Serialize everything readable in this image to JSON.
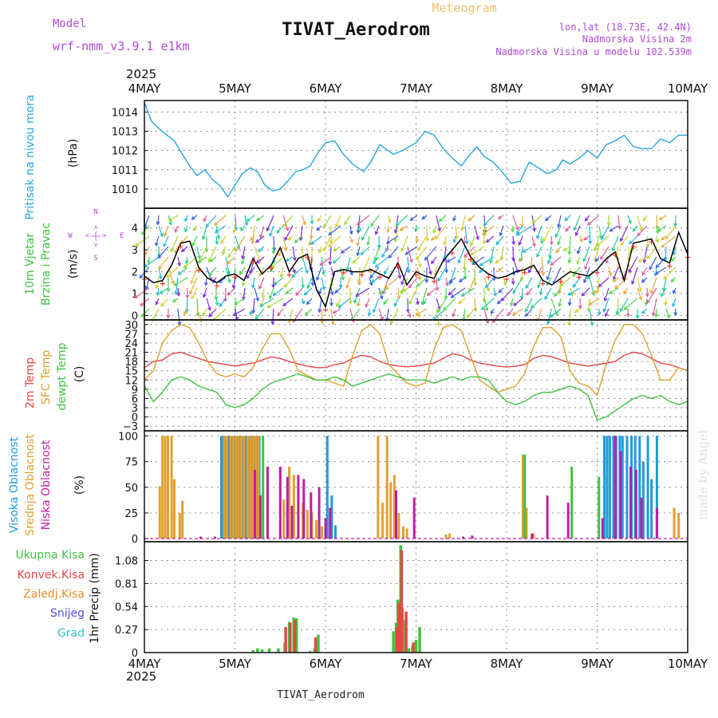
{
  "header": {
    "model_label": "Model",
    "model_name": "wrf-nmm_v3.9.1 e1km",
    "title": "TIVAT_Aerodrom",
    "subtitle": "Meteogram",
    "lonlat": "lon,lat (18.73E, 42.4N)",
    "elevation": "Nadmorska Visina 2m",
    "model_elevation": "Nadmorska Visina u modelu 102.539m",
    "footer": "TIVAT_Aerodrom",
    "watermark": "made by Angel"
  },
  "time_axis": {
    "year_top": "2025",
    "year_bottom": "2025",
    "ticks": [
      "4MAY",
      "5MAY",
      "6MAY",
      "7MAY",
      "8MAY",
      "9MAY",
      "10MAY"
    ],
    "range_days": [
      0,
      6
    ]
  },
  "chart_data": [
    {
      "type": "line",
      "panel": "pressure",
      "ylabel": "Pritisak na nivou mora",
      "unit": "(hPa)",
      "yticks": [
        1010,
        1011,
        1012,
        1013,
        1014
      ],
      "ylim": [
        1009.0,
        1014.6
      ],
      "grid": true,
      "series": [
        {
          "color": "#2aa5e0",
          "x": [
            0,
            0.08,
            0.17,
            0.25,
            0.33,
            0.42,
            0.5,
            0.58,
            0.67,
            0.75,
            0.83,
            0.92,
            1.0,
            1.08,
            1.17,
            1.25,
            1.33,
            1.42,
            1.5,
            1.58,
            1.67,
            1.75,
            1.83,
            1.92,
            2.0,
            2.1,
            2.2,
            2.3,
            2.42,
            2.5,
            2.6,
            2.75,
            2.85,
            3.0,
            3.1,
            3.2,
            3.3,
            3.4,
            3.5,
            3.58,
            3.67,
            3.75,
            3.85,
            3.95,
            4.05,
            4.15,
            4.25,
            4.35,
            4.45,
            4.55,
            4.62,
            4.7,
            4.8,
            4.9,
            5.0,
            5.1,
            5.2,
            5.3,
            5.4,
            5.5,
            5.6,
            5.7,
            5.8,
            5.9,
            6.0
          ],
          "values": [
            1014.5,
            1013.5,
            1013.1,
            1012.8,
            1012.5,
            1011.8,
            1011.2,
            1010.7,
            1011.0,
            1010.5,
            1010.2,
            1009.6,
            1010.2,
            1010.8,
            1011.1,
            1010.9,
            1010.2,
            1009.9,
            1010.0,
            1010.4,
            1010.9,
            1011.0,
            1011.2,
            1011.9,
            1012.4,
            1012.5,
            1011.8,
            1011.3,
            1010.9,
            1011.4,
            1012.3,
            1011.8,
            1012.0,
            1012.4,
            1013.0,
            1012.8,
            1012.1,
            1011.6,
            1011.2,
            1011.7,
            1012.2,
            1011.7,
            1011.4,
            1010.9,
            1010.3,
            1010.4,
            1011.4,
            1011.1,
            1010.8,
            1011.0,
            1011.5,
            1011.3,
            1011.6,
            1012.0,
            1011.6,
            1012.3,
            1012.5,
            1012.8,
            1012.2,
            1012.1,
            1012.1,
            1012.6,
            1012.4,
            1012.8,
            1012.8
          ]
        }
      ]
    },
    {
      "type": "line",
      "panel": "wind",
      "ylabel": "10m Vjetar",
      "ylabel2": "Brzina i Pravac",
      "unit": "(m/s)",
      "compass": {
        "n": "N",
        "w": "W",
        "e": "E",
        "s": "S",
        "arrow": "<-|->"
      },
      "yticks": [
        0,
        1,
        2,
        3,
        4
      ],
      "ylim": [
        -0.2,
        4.9
      ],
      "grid": true,
      "series": [
        {
          "color": "#000000",
          "x": [
            0,
            0.1,
            0.2,
            0.3,
            0.4,
            0.5,
            0.6,
            0.7,
            0.8,
            0.9,
            1.0,
            1.1,
            1.2,
            1.3,
            1.4,
            1.5,
            1.6,
            1.7,
            1.8,
            1.9,
            2.0,
            2.1,
            2.2,
            2.3,
            2.4,
            2.5,
            2.6,
            2.7,
            2.8,
            2.9,
            3.0,
            3.1,
            3.2,
            3.3,
            3.4,
            3.5,
            3.6,
            3.7,
            3.8,
            3.9,
            4.0,
            4.1,
            4.2,
            4.3,
            4.4,
            4.5,
            4.6,
            4.7,
            4.8,
            4.9,
            5.0,
            5.1,
            5.2,
            5.3,
            5.4,
            5.5,
            5.6,
            5.7,
            5.8,
            5.9,
            6.0
          ],
          "values": [
            1.8,
            1.5,
            1.6,
            2.3,
            3.3,
            3.4,
            2.2,
            1.7,
            1.5,
            1.8,
            1.9,
            1.6,
            2.6,
            1.9,
            2.3,
            3.1,
            2.0,
            2.6,
            2.8,
            1.2,
            0.4,
            2.0,
            2.1,
            2.0,
            2.0,
            2.1,
            1.9,
            1.7,
            2.4,
            1.4,
            2.0,
            1.8,
            1.7,
            2.5,
            3.0,
            3.5,
            2.7,
            2.2,
            1.9,
            1.7,
            1.8,
            2.0,
            2.1,
            2.3,
            1.6,
            1.4,
            1.7,
            2.0,
            1.9,
            1.8,
            2.1,
            2.6,
            2.9,
            1.6,
            3.3,
            3.4,
            3.5,
            2.6,
            2.4,
            3.8,
            2.8
          ]
        }
      ]
    },
    {
      "type": "line",
      "panel": "temperature",
      "ylabels": [
        "2m Temp",
        "SFC Temp",
        "dewpt Temp"
      ],
      "unit": "(C)",
      "yticks": [
        -3,
        0,
        3,
        6,
        9,
        12,
        15,
        18,
        21,
        24,
        27,
        30
      ],
      "ylim": [
        -4.5,
        31.5
      ],
      "grid": true,
      "series": [
        {
          "name": "2m Temp",
          "color": "#e84545",
          "x": [
            0,
            0.1,
            0.2,
            0.3,
            0.4,
            0.5,
            0.6,
            0.7,
            0.8,
            0.9,
            1.0,
            1.1,
            1.2,
            1.3,
            1.4,
            1.5,
            1.6,
            1.7,
            1.8,
            1.9,
            2.0,
            2.1,
            2.2,
            2.3,
            2.4,
            2.5,
            2.6,
            2.7,
            2.8,
            2.9,
            3.0,
            3.1,
            3.2,
            3.3,
            3.4,
            3.5,
            3.6,
            3.7,
            3.8,
            3.9,
            4.0,
            4.1,
            4.2,
            4.3,
            4.4,
            4.5,
            4.6,
            4.7,
            4.8,
            4.9,
            5.0,
            5.1,
            5.2,
            5.3,
            5.4,
            5.5,
            5.6,
            5.7,
            5.8,
            5.9,
            6.0
          ],
          "values": [
            16,
            18,
            18.5,
            20.5,
            21,
            20,
            19,
            18,
            17.5,
            17,
            16.5,
            17,
            17.5,
            18.5,
            19.5,
            19,
            18,
            17.2,
            16.5,
            16,
            16,
            17,
            17.5,
            19,
            20,
            19.5,
            18,
            17,
            16.5,
            16.3,
            16.5,
            17,
            17.5,
            19,
            20.5,
            20,
            18.5,
            17.5,
            17,
            16.5,
            16.2,
            16.5,
            17,
            19,
            20,
            19.5,
            18.5,
            17.5,
            17,
            16.5,
            17,
            17.5,
            18,
            20,
            21,
            20.5,
            19,
            17.5,
            17,
            16,
            15
          ]
        },
        {
          "name": "SFC Temp",
          "color": "#e0a030",
          "x": [
            0,
            0.1,
            0.2,
            0.3,
            0.4,
            0.5,
            0.6,
            0.7,
            0.8,
            0.9,
            1.0,
            1.1,
            1.2,
            1.3,
            1.4,
            1.5,
            1.6,
            1.7,
            1.8,
            1.9,
            2.0,
            2.1,
            2.2,
            2.3,
            2.4,
            2.5,
            2.6,
            2.7,
            2.8,
            2.9,
            3.0,
            3.1,
            3.2,
            3.3,
            3.4,
            3.5,
            3.6,
            3.7,
            3.8,
            3.9,
            4.0,
            4.1,
            4.2,
            4.3,
            4.4,
            4.5,
            4.6,
            4.7,
            4.8,
            4.9,
            5.0,
            5.1,
            5.2,
            5.3,
            5.4,
            5.5,
            5.6,
            5.7,
            5.8,
            5.9,
            6.0
          ],
          "values": [
            12,
            15,
            24,
            28,
            30,
            29,
            24,
            18,
            14,
            13,
            14,
            13,
            16,
            22,
            27,
            27,
            22,
            15,
            13.5,
            12,
            12,
            11,
            10,
            20,
            28,
            30,
            27,
            17,
            14,
            11,
            10,
            11,
            22,
            29,
            30,
            28,
            20,
            12,
            10,
            8,
            9,
            10,
            14,
            23,
            29,
            29,
            26,
            15,
            11,
            10,
            7,
            17,
            25,
            30,
            30,
            27,
            20,
            12,
            12,
            16,
            15
          ]
        },
        {
          "name": "dewpt Temp",
          "color": "#3fc23f",
          "x": [
            0,
            0.1,
            0.2,
            0.3,
            0.4,
            0.5,
            0.6,
            0.7,
            0.8,
            0.9,
            1.0,
            1.1,
            1.2,
            1.3,
            1.4,
            1.5,
            1.6,
            1.7,
            1.8,
            1.9,
            2.0,
            2.1,
            2.2,
            2.3,
            2.4,
            2.5,
            2.6,
            2.7,
            2.8,
            2.9,
            3.0,
            3.1,
            3.2,
            3.3,
            3.4,
            3.5,
            3.6,
            3.7,
            3.8,
            3.9,
            4.0,
            4.1,
            4.2,
            4.3,
            4.4,
            4.5,
            4.6,
            4.7,
            4.8,
            4.9,
            5.0,
            5.1,
            5.2,
            5.3,
            5.4,
            5.5,
            5.6,
            5.7,
            5.8,
            5.9,
            6.0
          ],
          "values": [
            10,
            5,
            8,
            12,
            13,
            12,
            10,
            9,
            8,
            4,
            3,
            4,
            6,
            9,
            11,
            12,
            13,
            14,
            13,
            12,
            12,
            13,
            12,
            10,
            11,
            12,
            13,
            14,
            13,
            12,
            12,
            12,
            11,
            12,
            13,
            12,
            13,
            13,
            12,
            8,
            5,
            4,
            5,
            7,
            8,
            8,
            9,
            10,
            9,
            7,
            -1,
            0,
            2,
            4,
            6,
            7,
            6,
            7,
            5,
            4,
            5
          ]
        }
      ]
    },
    {
      "type": "bar",
      "panel": "cloud",
      "ylabels": [
        "Visoka Oblacnost",
        "Srednja Oblacnost",
        "Niska Oblacnost"
      ],
      "unit": "(%)",
      "yticks": [
        0,
        25,
        50,
        75,
        100
      ],
      "ylim": [
        -3,
        105
      ],
      "grid": true,
      "series": [
        {
          "name": "Visoka Oblacnost",
          "color": "#1e9ae0",
          "x": [
            0.85,
            0.87,
            0.9,
            0.93,
            0.96,
            0.99,
            1.02,
            1.05,
            1.08,
            1.12,
            1.15,
            1.18,
            1.21,
            1.24,
            1.27,
            2.02,
            2.07,
            2.11,
            5.08,
            5.11,
            5.14,
            5.18,
            5.21,
            5.25,
            5.28,
            5.33,
            5.38,
            5.42,
            5.47,
            5.51,
            5.56,
            5.6,
            5.66
          ],
          "values": [
            100,
            100,
            100,
            100,
            100,
            100,
            100,
            100,
            100,
            100,
            100,
            100,
            100,
            100,
            100,
            100,
            42,
            13,
            100,
            100,
            100,
            100,
            100,
            100,
            100,
            100,
            100,
            100,
            100,
            75,
            100,
            58,
            100
          ]
        },
        {
          "name": "Srednja Oblacnost",
          "color": "#e0a030",
          "x": [
            0.17,
            0.2,
            0.23,
            0.26,
            0.3,
            0.33,
            0.39,
            0.42,
            0.88,
            0.91,
            0.95,
            0.98,
            1.01,
            1.04,
            1.07,
            1.1,
            1.14,
            1.17,
            1.2,
            1.23,
            1.26,
            1.54,
            1.6,
            1.65,
            1.7,
            1.75,
            1.8,
            1.85,
            1.9,
            1.96,
            2.58,
            2.63,
            2.68,
            2.72,
            2.76,
            2.81,
            2.86,
            2.9,
            3.33,
            3.37,
            4.18,
            4.22,
            4.3,
            5.85,
            5.9
          ],
          "values": [
            51,
            100,
            100,
            100,
            100,
            58,
            25,
            37,
            100,
            100,
            100,
            100,
            100,
            100,
            100,
            100,
            100,
            100,
            100,
            100,
            100,
            38,
            70,
            62,
            48,
            35,
            28,
            25,
            18,
            12,
            100,
            35,
            100,
            55,
            62,
            25,
            12,
            10,
            4,
            5,
            82,
            30,
            5,
            30,
            25
          ]
        },
        {
          "name": "Niska Oblacnost",
          "color": "#c01e9f",
          "x": [
            0.62,
            0.78,
            1.22,
            1.28,
            1.36,
            1.5,
            1.58,
            1.63,
            1.7,
            1.76,
            1.84,
            1.93,
            2.0,
            2.05,
            2.78,
            2.98,
            3.52,
            3.62,
            4.28,
            4.45,
            4.68,
            5.06,
            5.2,
            5.26,
            5.37,
            5.43,
            5.49,
            5.66
          ],
          "values": [
            2,
            2,
            67,
            42,
            70,
            70,
            60,
            32,
            62,
            58,
            45,
            50,
            20,
            30,
            47,
            40,
            2,
            3,
            5,
            42,
            35,
            20,
            100,
            85,
            70,
            67,
            40,
            30
          ]
        },
        {
          "name": "Ukupna",
          "color": "#3fc23f",
          "x": [
            1.31,
            4.2,
            4.72,
            5.02
          ],
          "values": [
            100,
            82,
            70,
            60
          ]
        }
      ]
    },
    {
      "type": "bar",
      "panel": "precip",
      "ylabels": [
        "Ukupna Kisa",
        "Konvek.Kisa",
        "Zaledj.Kisa",
        "Snijeg",
        "Grad"
      ],
      "unit": "1hr Precip (mm)",
      "yticks": [
        0,
        0.27,
        0.54,
        0.81,
        1.08
      ],
      "ylim": [
        0,
        1.3
      ],
      "grid": true,
      "series": [
        {
          "name": "Ukupna Kisa",
          "color": "#3fc23f",
          "x": [
            1.2,
            1.25,
            1.3,
            1.38,
            1.48,
            1.55,
            1.6,
            1.65,
            1.68,
            1.83,
            1.88,
            1.92,
            2.75,
            2.78,
            2.8,
            2.83,
            2.85,
            2.88,
            2.92,
            2.96,
            3.0,
            3.04
          ],
          "values": [
            0.03,
            0.05,
            0.04,
            0.05,
            0.05,
            0.12,
            0.36,
            0.41,
            0.4,
            0.02,
            0.05,
            0.21,
            0.25,
            0.35,
            0.62,
            1.26,
            0.52,
            0.38,
            0.05,
            0.08,
            0.15,
            0.3
          ]
        },
        {
          "name": "Konvek.Kisa",
          "color": "#e84545",
          "x": [
            1.55,
            1.6,
            1.65,
            1.88,
            2.78,
            2.8,
            2.83,
            2.88,
            2.96
          ],
          "values": [
            0.3,
            0.35,
            0.38,
            0.18,
            0.3,
            0.58,
            1.2,
            0.48,
            0.12
          ]
        }
      ]
    }
  ]
}
